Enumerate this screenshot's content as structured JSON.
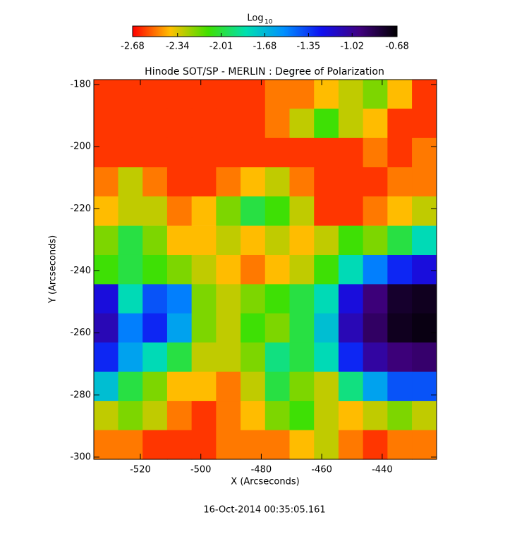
{
  "chart_data": {
    "type": "heatmap",
    "title": "Hinode SOT/SP - MERLIN : Degree of Polarization",
    "x_label": "X (Arcseconds)",
    "y_label": "Y (Arcseconds)",
    "footer": "16-Oct-2014 00:35:05.161",
    "colorbar_label": "Log",
    "colorbar_label_sub": "10",
    "colorscale": [
      "#ff0000",
      "#ffc000",
      "#40e000",
      "#00e0b0",
      "#0090ff",
      "#1010f0",
      "#400080",
      "#000000"
    ],
    "clim": [
      -2.68,
      -0.68
    ],
    "cticks": [
      -2.68,
      -2.34,
      -2.01,
      -1.68,
      -1.35,
      -1.02,
      -0.68
    ],
    "xlim": [
      -535.4,
      -422
    ],
    "ylim": [
      -300.7,
      -178.4
    ],
    "xticks": [
      -520,
      -500,
      -480,
      -460,
      -440
    ],
    "yticks": [
      -180,
      -200,
      -220,
      -240,
      -260,
      -280,
      -300
    ],
    "x": [
      -531.4,
      -523.3,
      -515.2,
      -507.1,
      -499.0,
      -490.9,
      -482.8,
      -474.7,
      -466.6,
      -458.5,
      -450.4,
      -442.3,
      -434.2,
      -426.1
    ],
    "y": [
      -183.1,
      -192.5,
      -201.9,
      -211.3,
      -220.7,
      -230.2,
      -239.6,
      -249.0,
      -258.4,
      -267.8,
      -277.2,
      -286.6,
      -296.0
    ],
    "z": [
      [
        -2.6,
        -2.6,
        -2.6,
        -2.6,
        -2.6,
        -2.6,
        -2.6,
        -2.5,
        -2.5,
        -2.4,
        -2.3,
        -2.2,
        -2.4,
        -2.6
      ],
      [
        -2.6,
        -2.6,
        -2.6,
        -2.6,
        -2.6,
        -2.6,
        -2.6,
        -2.5,
        -2.3,
        -2.1,
        -2.3,
        -2.4,
        -2.6,
        -2.6
      ],
      [
        -2.6,
        -2.6,
        -2.6,
        -2.6,
        -2.6,
        -2.6,
        -2.6,
        -2.6,
        -2.6,
        -2.6,
        -2.6,
        -2.5,
        -2.6,
        -2.5
      ],
      [
        -2.5,
        -2.3,
        -2.5,
        -2.6,
        -2.6,
        -2.5,
        -2.4,
        -2.3,
        -2.5,
        -2.6,
        -2.6,
        -2.6,
        -2.5,
        -2.5
      ],
      [
        -2.4,
        -2.3,
        -2.3,
        -2.5,
        -2.4,
        -2.2,
        -2.0,
        -2.1,
        -2.3,
        -2.6,
        -2.6,
        -2.5,
        -2.4,
        -2.3
      ],
      [
        -2.2,
        -2.0,
        -2.2,
        -2.4,
        -2.4,
        -2.3,
        -2.4,
        -2.3,
        -2.4,
        -2.3,
        -2.1,
        -2.2,
        -2.0,
        -1.8
      ],
      [
        -2.1,
        -2.0,
        -2.1,
        -2.2,
        -2.3,
        -2.4,
        -2.5,
        -2.4,
        -2.3,
        -2.1,
        -1.8,
        -1.5,
        -1.3,
        -1.2
      ],
      [
        -1.2,
        -1.8,
        -1.4,
        -1.5,
        -2.2,
        -2.3,
        -2.2,
        -2.1,
        -2.0,
        -1.8,
        -1.2,
        -0.95,
        -0.78,
        -0.75
      ],
      [
        -1.1,
        -1.5,
        -1.3,
        -1.6,
        -2.2,
        -2.3,
        -2.1,
        -2.2,
        -2.0,
        -1.7,
        -1.1,
        -0.9,
        -0.75,
        -0.72
      ],
      [
        -1.3,
        -1.6,
        -1.8,
        -2.0,
        -2.3,
        -2.3,
        -2.2,
        -1.9,
        -2.0,
        -1.8,
        -1.3,
        -1.05,
        -0.95,
        -0.92
      ],
      [
        -1.7,
        -2.0,
        -2.2,
        -2.4,
        -2.4,
        -2.5,
        -2.3,
        -2.0,
        -2.2,
        -2.3,
        -1.9,
        -1.6,
        -1.4,
        -1.4
      ],
      [
        -2.3,
        -2.2,
        -2.3,
        -2.5,
        -2.6,
        -2.5,
        -2.4,
        -2.2,
        -2.1,
        -2.3,
        -2.4,
        -2.3,
        -2.2,
        -2.3
      ],
      [
        -2.5,
        -2.5,
        -2.6,
        -2.6,
        -2.6,
        -2.5,
        -2.5,
        -2.5,
        -2.4,
        -2.3,
        -2.5,
        -2.6,
        -2.5,
        -2.5
      ]
    ]
  }
}
